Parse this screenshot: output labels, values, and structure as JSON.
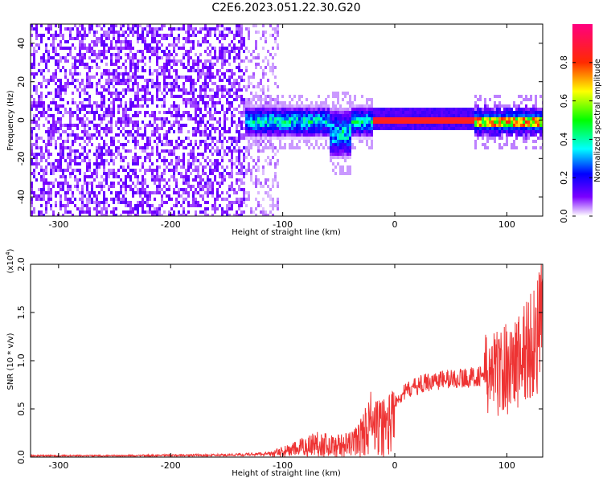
{
  "title": "C2E6.2023.051.22.30.G20",
  "colors": {
    "snr_line": "#ee3333",
    "baseline": "#000000"
  },
  "chart_data": [
    {
      "type": "heatmap",
      "xlabel": "Height of straight line (km)",
      "ylabel": "Frequency (Hz)",
      "xlim": [
        -325,
        132
      ],
      "ylim": [
        -50,
        50
      ],
      "xticks": [
        -300,
        -200,
        -100,
        0,
        100
      ],
      "yticks": [
        -40,
        -20,
        0,
        20,
        40
      ],
      "colorbar": {
        "label": "Normalized spectral amplitude",
        "range": [
          0.0,
          1.0
        ],
        "ticks": [
          0.0,
          0.2,
          0.4,
          0.6,
          0.8
        ],
        "tick_labels": [
          "0.0",
          "0.2",
          "0.4",
          "0.6",
          "0.8"
        ],
        "colormap": "rainbow"
      },
      "regions": [
        {
          "x_range": [
            -325,
            -135
          ],
          "description_level": 0.12,
          "freq_spread": [
            -50,
            50
          ]
        },
        {
          "x_range": [
            -135,
            -105
          ],
          "description_level": 0.05,
          "freq_spread": [
            -50,
            50
          ]
        },
        {
          "x_range": [
            -135,
            -20
          ],
          "description_level": 0.35,
          "freq_spread": [
            -18,
            18
          ]
        },
        {
          "x_range": [
            -20,
            70
          ],
          "description_level": 0.95,
          "freq_spread": [
            -2,
            2
          ]
        },
        {
          "x_range": [
            70,
            132
          ],
          "description_level": 0.6,
          "freq_spread": [
            -8,
            8
          ]
        }
      ]
    },
    {
      "type": "line",
      "xlabel": "Height of straight line (km)",
      "ylabel": "SNR (10 * v/v)",
      "y_multiplier": "(x10",
      "y_multiplier_exp": "4",
      "y_multiplier_close": ")",
      "xlim": [
        -325,
        132
      ],
      "ylim": [
        0,
        2.0
      ],
      "xticks": [
        -300,
        -200,
        -100,
        0,
        100
      ],
      "yticks": [
        0.0,
        0.5,
        1.0,
        1.5,
        2.0
      ],
      "ytick_labels": [
        "0.0",
        "0.5",
        "1.0",
        "1.5",
        "2.0"
      ],
      "series": [
        {
          "x": [
            -325,
            -250,
            -150,
            -110,
            -90,
            -70,
            -55,
            -40,
            -30,
            -22,
            -15,
            -10,
            -5,
            0,
            10,
            20,
            30,
            40,
            50,
            60,
            70,
            80,
            90,
            100,
            110,
            120,
            130
          ],
          "y": [
            0.02,
            0.02,
            0.03,
            0.05,
            0.12,
            0.22,
            0.18,
            0.2,
            0.32,
            0.55,
            0.45,
            0.5,
            0.55,
            0.6,
            0.7,
            0.76,
            0.8,
            0.82,
            0.83,
            0.84,
            0.85,
            0.88,
            0.92,
            0.98,
            1.05,
            1.2,
            1.4
          ]
        }
      ]
    }
  ]
}
